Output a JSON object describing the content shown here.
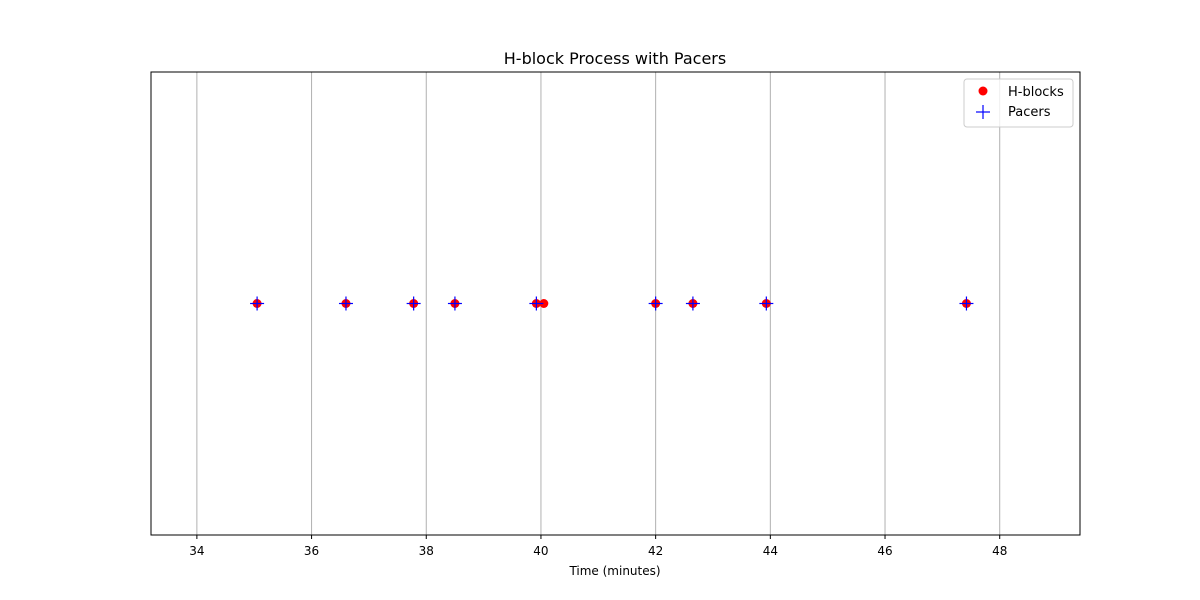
{
  "chart_data": {
    "type": "scatter",
    "title": "H-block Process with Pacers",
    "xlabel": "Time (minutes)",
    "ylabel": "",
    "xlim": [
      33.2,
      49.4
    ],
    "x_ticks": [
      34,
      36,
      38,
      40,
      42,
      44,
      46,
      48
    ],
    "x_tick_labels": [
      "34",
      "36",
      "38",
      "40",
      "42",
      "44",
      "46",
      "48"
    ],
    "grid": "vertical",
    "y_ticks_visible": false,
    "legend_position": "top-right",
    "series": [
      {
        "name": "H-blocks",
        "marker": "circle",
        "color": "#ff0000",
        "x": [
          35.05,
          36.6,
          37.78,
          38.5,
          39.92,
          40.05,
          42.0,
          42.65,
          43.93,
          47.42
        ],
        "y": [
          0,
          0,
          0,
          0,
          0,
          0,
          0,
          0,
          0,
          0
        ]
      },
      {
        "name": "Pacers",
        "marker": "plus",
        "color": "#0000ff",
        "x": [
          35.05,
          36.6,
          37.78,
          38.5,
          39.92,
          42.0,
          42.65,
          43.93,
          47.42
        ],
        "y": [
          0,
          0,
          0,
          0,
          0,
          0,
          0,
          0,
          0
        ]
      }
    ]
  }
}
